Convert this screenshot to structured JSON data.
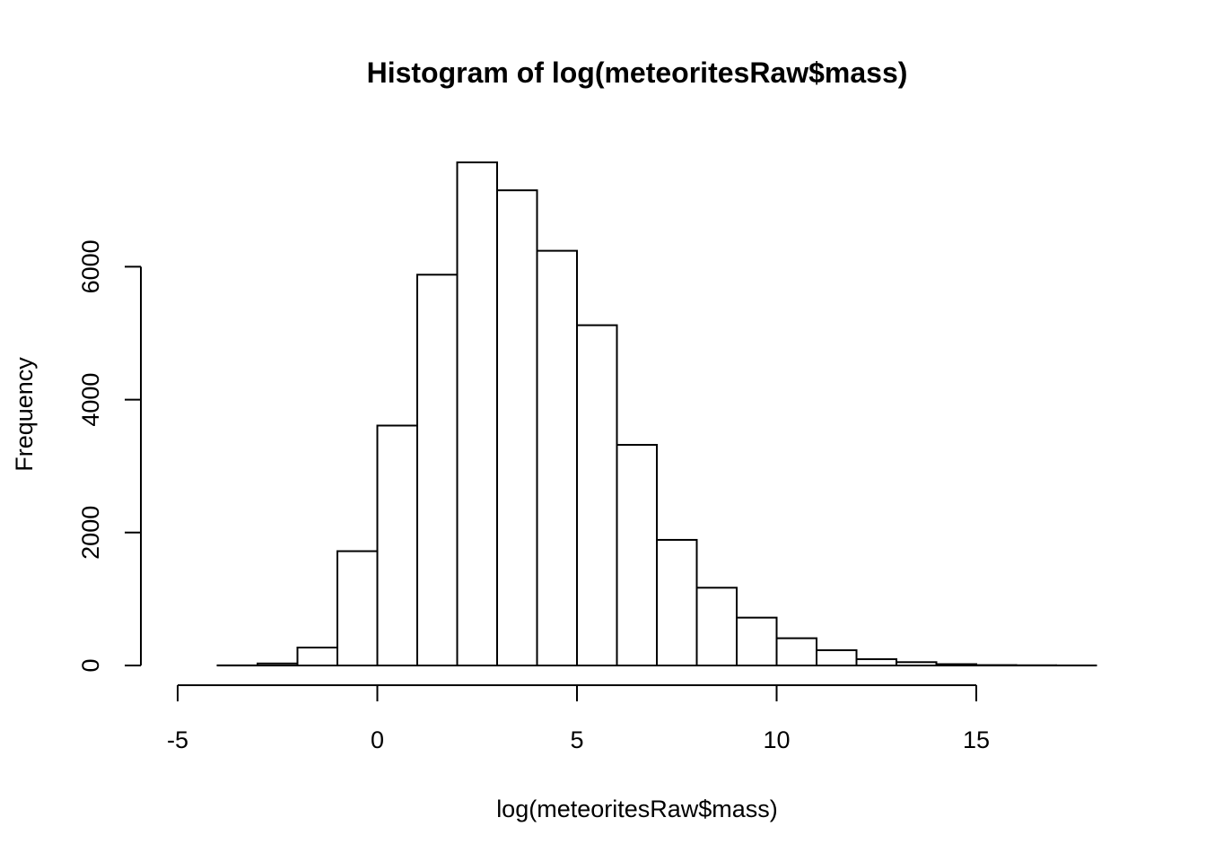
{
  "chart_data": {
    "type": "bar",
    "subtype": "histogram",
    "title": "Histogram of log(meteoritesRaw$mass)",
    "xlabel": "log(meteoritesRaw$mass)",
    "ylabel": "Frequency",
    "xlim": [
      -5,
      18
    ],
    "ylim": [
      0,
      7600
    ],
    "x_ticks": [
      -5,
      0,
      5,
      10,
      15
    ],
    "y_ticks": [
      0,
      2000,
      4000,
      6000
    ],
    "bins": [
      {
        "x0": -5,
        "x1": -4,
        "count": 0
      },
      {
        "x0": -4,
        "x1": -3,
        "count": 2
      },
      {
        "x0": -3,
        "x1": -2,
        "count": 30
      },
      {
        "x0": -2,
        "x1": -1,
        "count": 270
      },
      {
        "x0": -1,
        "x1": 0,
        "count": 1720
      },
      {
        "x0": 0,
        "x1": 1,
        "count": 3610
      },
      {
        "x0": 1,
        "x1": 2,
        "count": 5880
      },
      {
        "x0": 2,
        "x1": 3,
        "count": 7570
      },
      {
        "x0": 3,
        "x1": 4,
        "count": 7150
      },
      {
        "x0": 4,
        "x1": 5,
        "count": 6240
      },
      {
        "x0": 5,
        "x1": 6,
        "count": 5120
      },
      {
        "x0": 6,
        "x1": 7,
        "count": 3320
      },
      {
        "x0": 7,
        "x1": 8,
        "count": 1890
      },
      {
        "x0": 8,
        "x1": 9,
        "count": 1170
      },
      {
        "x0": 9,
        "x1": 10,
        "count": 720
      },
      {
        "x0": 10,
        "x1": 11,
        "count": 410
      },
      {
        "x0": 11,
        "x1": 12,
        "count": 230
      },
      {
        "x0": 12,
        "x1": 13,
        "count": 95
      },
      {
        "x0": 13,
        "x1": 14,
        "count": 50
      },
      {
        "x0": 14,
        "x1": 15,
        "count": 20
      },
      {
        "x0": 15,
        "x1": 16,
        "count": 6
      },
      {
        "x0": 16,
        "x1": 17,
        "count": 3
      },
      {
        "x0": 17,
        "x1": 18,
        "count": 1
      }
    ],
    "grid": false,
    "bar_fill": "#ffffff",
    "bar_stroke": "#000000"
  }
}
